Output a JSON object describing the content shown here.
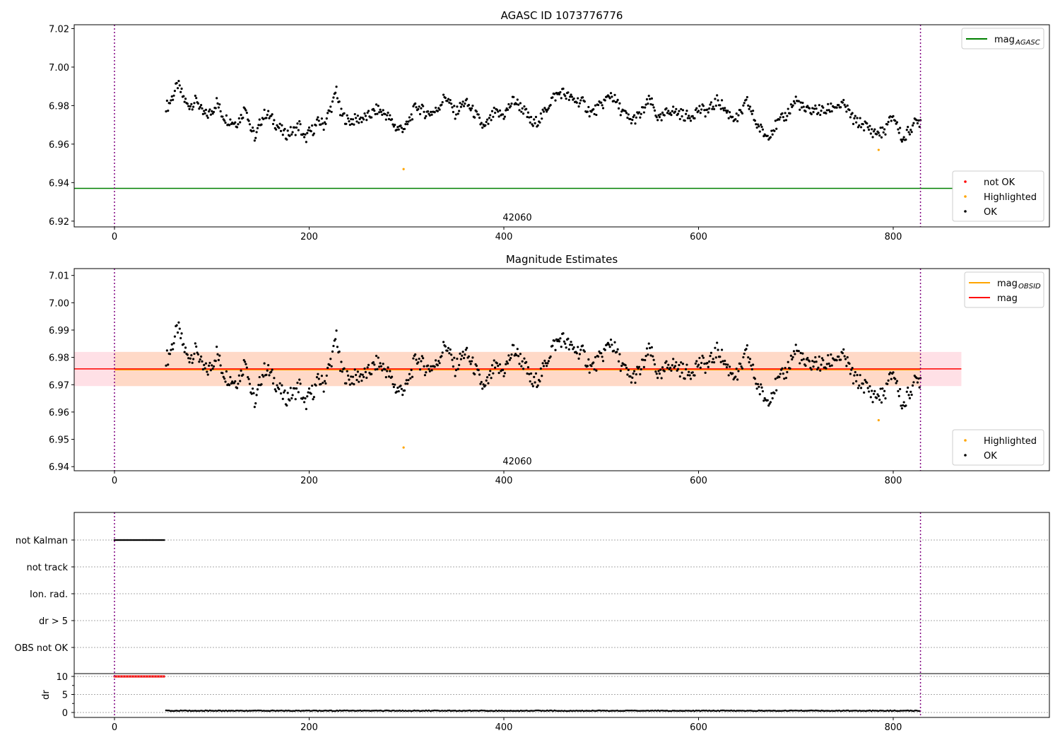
{
  "chart_data": [
    {
      "type": "scatter",
      "title": "AGASC ID 1073776776",
      "xlim": [
        -41.4,
        960.4
      ],
      "ylim": [
        6.917,
        7.022
      ],
      "yticks": [
        "6.92",
        "6.94",
        "6.96",
        "6.98",
        "7.00",
        "7.02"
      ],
      "xticks": [
        "0",
        "200",
        "400",
        "600",
        "800"
      ],
      "annotation": "42060",
      "vlines": [
        0,
        828
      ],
      "mag_agasc": 6.937,
      "legend_top": [
        {
          "label": "mag",
          "sub": "AGASC",
          "color": "#008000"
        }
      ],
      "legend_bottom": [
        {
          "label": "not OK",
          "color": "#ff0000"
        },
        {
          "label": "Highlighted",
          "color": "#ffa500"
        },
        {
          "label": "OK",
          "color": "#000000"
        }
      ]
    },
    {
      "type": "scatter",
      "title": "Magnitude Estimates",
      "xlim": [
        -41.4,
        960.4
      ],
      "ylim": [
        6.9385,
        7.0125
      ],
      "yticks": [
        "6.94",
        "6.95",
        "6.96",
        "6.97",
        "6.98",
        "6.99",
        "7.00",
        "7.01"
      ],
      "xticks": [
        "0",
        "200",
        "400",
        "600",
        "800"
      ],
      "annotation": "42060",
      "mag": 6.9758,
      "mag_obsid": 6.9755,
      "band": [
        6.9695,
        6.982
      ],
      "legend_top": [
        {
          "label": "mag",
          "sub": "OBSID",
          "color": "#ffa500"
        },
        {
          "label": "mag",
          "sub": "",
          "color": "#ff0000"
        }
      ],
      "legend_bottom": [
        {
          "label": "Highlighted",
          "color": "#ffa500"
        },
        {
          "label": "OK",
          "color": "#000000"
        }
      ]
    },
    {
      "type": "scatter",
      "flags": [
        "not Kalman",
        "not track",
        "Ion. rad.",
        "dr > 5",
        "OBS not OK"
      ],
      "not_kalman_range": [
        0,
        52
      ],
      "dr_ylabel": "dr",
      "dr_yticks": [
        "0",
        "5",
        "10"
      ],
      "dr_flagged_value": 10,
      "dr_ok_value": 0.4,
      "xticks": [
        "0",
        "200",
        "400",
        "600",
        "800"
      ]
    }
  ],
  "series": {
    "x": [
      55,
      60,
      65,
      70,
      75,
      80,
      85,
      90,
      95,
      100,
      105,
      110,
      115,
      120,
      125,
      130,
      135,
      140,
      145,
      150,
      155,
      160,
      165,
      170,
      175,
      180,
      185,
      190,
      195,
      200,
      205,
      210,
      215,
      220,
      225,
      228,
      232,
      240,
      250,
      260,
      270,
      280,
      290,
      300,
      310,
      320,
      330,
      340,
      350,
      360,
      370,
      380,
      390,
      400,
      410,
      420,
      430,
      440,
      450,
      460,
      470,
      480,
      490,
      500,
      510,
      520,
      530,
      540,
      550,
      560,
      570,
      580,
      590,
      600,
      610,
      620,
      630,
      640,
      650,
      660,
      670,
      680,
      690,
      700,
      710,
      720,
      730,
      740,
      750,
      760,
      770,
      780,
      790,
      800,
      810,
      820,
      828
    ],
    "mag": [
      6.98,
      6.985,
      6.991,
      6.985,
      6.98,
      6.981,
      6.983,
      6.976,
      6.975,
      6.977,
      6.982,
      6.976,
      6.973,
      6.972,
      6.971,
      6.974,
      6.98,
      6.968,
      6.963,
      6.972,
      6.976,
      6.974,
      6.971,
      6.968,
      6.965,
      6.966,
      6.967,
      6.97,
      6.962,
      6.966,
      6.968,
      6.972,
      6.97,
      6.976,
      6.982,
      6.989,
      6.976,
      6.972,
      6.973,
      6.974,
      6.978,
      6.975,
      6.968,
      6.969,
      6.98,
      6.976,
      6.977,
      6.985,
      6.976,
      6.982,
      6.976,
      6.968,
      6.976,
      6.975,
      6.983,
      6.978,
      6.97,
      6.975,
      6.984,
      6.987,
      6.983,
      6.982,
      6.976,
      6.98,
      6.986,
      6.978,
      6.972,
      6.975,
      6.983,
      6.972,
      6.978,
      6.976,
      6.974,
      6.978,
      6.977,
      6.983,
      6.976,
      6.973,
      6.982,
      6.97,
      6.964,
      6.97,
      6.975,
      6.983,
      6.977,
      6.978,
      6.977,
      6.98,
      6.98,
      6.972,
      6.97,
      6.966,
      6.966,
      6.975,
      6.962,
      6.97,
      6.972
    ],
    "highlighted": [
      [
        297,
        6.947
      ],
      [
        785,
        6.957
      ]
    ]
  }
}
